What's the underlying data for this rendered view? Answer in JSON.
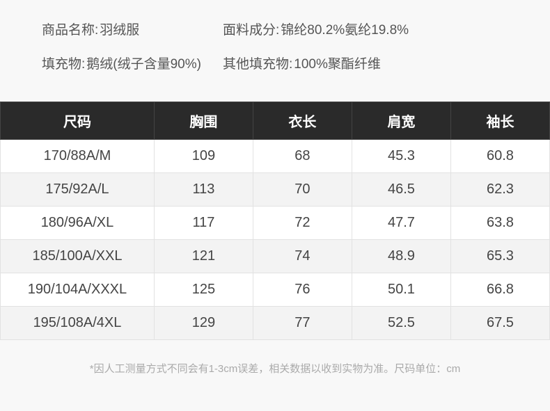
{
  "info": {
    "row1": {
      "left": {
        "label": "商品名称:",
        "value": "羽绒服"
      },
      "right": {
        "label": "面料成分:",
        "value": "锦纶80.2%氨纶19.8%"
      }
    },
    "row2": {
      "left": {
        "label": "填充物:",
        "value": "鹅绒(绒子含量90%)"
      },
      "right": {
        "label": "其他填充物:",
        "value": "100%聚酯纤维"
      }
    }
  },
  "table": {
    "columns": [
      "尺码",
      "胸围",
      "衣长",
      "肩宽",
      "袖长"
    ],
    "rows": [
      [
        "170/88A/M",
        "109",
        "68",
        "45.3",
        "60.8"
      ],
      [
        "175/92A/L",
        "113",
        "70",
        "46.5",
        "62.3"
      ],
      [
        "180/96A/XL",
        "117",
        "72",
        "47.7",
        "63.8"
      ],
      [
        "185/100A/XXL",
        "121",
        "74",
        "48.9",
        "65.3"
      ],
      [
        "190/104A/XXXL",
        "125",
        "76",
        "50.1",
        "66.8"
      ],
      [
        "195/108A/4XL",
        "129",
        "77",
        "52.5",
        "67.5"
      ]
    ],
    "header_bg": "#2a2a2a",
    "header_text_color": "#ffffff",
    "row_odd_bg": "#ffffff",
    "row_even_bg": "#f3f3f3",
    "border_color": "#e2e2e2",
    "label_fontsize": 20,
    "cell_fontsize": 20,
    "col_widths": [
      "28%",
      "18%",
      "18%",
      "18%",
      "18%"
    ]
  },
  "footnote": "*因人工测量方式不同会有1-3cm误差，相关数据以收到实物为准。尺码单位：cm"
}
